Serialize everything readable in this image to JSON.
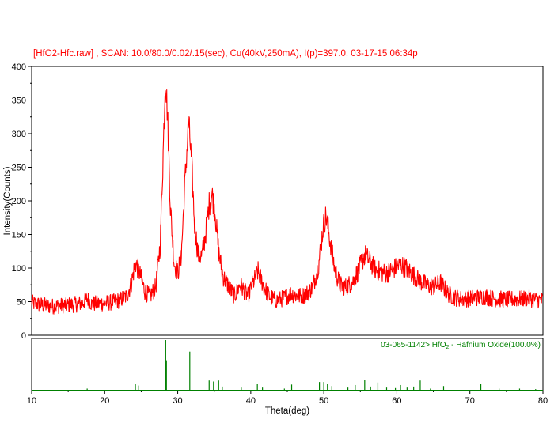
{
  "chart_data": {
    "type": "line",
    "title": "[HfO2-Hfc.raw] , SCAN: 10.0/80.0/0.02/.15(sec), Cu(40kV,250mA), I(p)=397.0, 03-17-15 06:34p",
    "title_color": "#ff0000",
    "xlabel": "Theta(deg)",
    "ylabel": "Intensity(Counts)",
    "xlim": [
      10,
      80
    ],
    "ylim": [
      0,
      400
    ],
    "xticks": [
      "10",
      "20",
      "30",
      "40",
      "50",
      "60",
      "70",
      "80"
    ],
    "yticks": [
      "0",
      "50",
      "100",
      "150",
      "200",
      "250",
      "300",
      "350",
      "400"
    ],
    "grid": false,
    "series": [
      {
        "color": "#ff0000",
        "points": [
          [
            10,
            48
          ],
          [
            11,
            46
          ],
          [
            12,
            44
          ],
          [
            13,
            43
          ],
          [
            14,
            44
          ],
          [
            15,
            45
          ],
          [
            16,
            46
          ],
          [
            17,
            48
          ],
          [
            17.6,
            55
          ],
          [
            18.2,
            47
          ],
          [
            19,
            47
          ],
          [
            20,
            48
          ],
          [
            21,
            49
          ],
          [
            22,
            52
          ],
          [
            23,
            58
          ],
          [
            23.6,
            75
          ],
          [
            24.2,
            108
          ],
          [
            24.8,
            92
          ],
          [
            25.5,
            65
          ],
          [
            26.2,
            58
          ],
          [
            27,
            72
          ],
          [
            27.6,
            135
          ],
          [
            28.0,
            270
          ],
          [
            28.3,
            385
          ],
          [
            28.6,
            330
          ],
          [
            29.0,
            190
          ],
          [
            29.5,
            108
          ],
          [
            30.0,
            92
          ],
          [
            30.5,
            120
          ],
          [
            31.0,
            230
          ],
          [
            31.5,
            318
          ],
          [
            31.9,
            255
          ],
          [
            32.3,
            165
          ],
          [
            32.8,
            120
          ],
          [
            33.3,
            118
          ],
          [
            33.8,
            150
          ],
          [
            34.3,
            195
          ],
          [
            34.7,
            210
          ],
          [
            35.1,
            185
          ],
          [
            35.6,
            125
          ],
          [
            36.2,
            88
          ],
          [
            37,
            72
          ],
          [
            37.8,
            58
          ],
          [
            38.5,
            75
          ],
          [
            39,
            68
          ],
          [
            39.6,
            58
          ],
          [
            40.2,
            75
          ],
          [
            41,
            95
          ],
          [
            41.8,
            72
          ],
          [
            42.5,
            58
          ],
          [
            43.5,
            52
          ],
          [
            44.5,
            55
          ],
          [
            45.5,
            62
          ],
          [
            46.5,
            58
          ],
          [
            47.5,
            60
          ],
          [
            48.5,
            72
          ],
          [
            49.3,
            105
          ],
          [
            49.9,
            160
          ],
          [
            50.3,
            178
          ],
          [
            50.8,
            145
          ],
          [
            51.5,
            98
          ],
          [
            52.2,
            75
          ],
          [
            53,
            72
          ],
          [
            54,
            80
          ],
          [
            54.8,
            98
          ],
          [
            55.6,
            120
          ],
          [
            56.3,
            110
          ],
          [
            57,
            98
          ],
          [
            57.8,
            95
          ],
          [
            58.5,
            92
          ],
          [
            59.5,
            98
          ],
          [
            60.5,
            105
          ],
          [
            61.3,
            100
          ],
          [
            62,
            92
          ],
          [
            63,
            82
          ],
          [
            64,
            75
          ],
          [
            65,
            72
          ],
          [
            66,
            78
          ],
          [
            67,
            62
          ],
          [
            68,
            56
          ],
          [
            69,
            54
          ],
          [
            70,
            55
          ],
          [
            71,
            56
          ],
          [
            72,
            58
          ],
          [
            73,
            55
          ],
          [
            74,
            54
          ],
          [
            75,
            53
          ],
          [
            76,
            54
          ],
          [
            77,
            54
          ],
          [
            78,
            55
          ],
          [
            79,
            53
          ],
          [
            80,
            52
          ]
        ]
      }
    ],
    "reference": {
      "label_prefix": "03-065-1142> HfO",
      "label_subscript": "2",
      "label_suffix": " - Hafnium Oxide(100.0%)",
      "color": "#008000",
      "lines": [
        [
          17.6,
          4
        ],
        [
          24.2,
          14
        ],
        [
          24.6,
          10
        ],
        [
          28.35,
          100
        ],
        [
          28.45,
          60
        ],
        [
          31.65,
          77
        ],
        [
          34.3,
          20
        ],
        [
          34.9,
          18
        ],
        [
          35.6,
          20
        ],
        [
          36.1,
          8
        ],
        [
          38.7,
          6
        ],
        [
          40.9,
          13
        ],
        [
          41.6,
          6
        ],
        [
          44.6,
          4
        ],
        [
          45.6,
          12
        ],
        [
          49.4,
          17
        ],
        [
          50.0,
          17
        ],
        [
          50.5,
          14
        ],
        [
          51.1,
          9
        ],
        [
          53.3,
          6
        ],
        [
          54.3,
          11
        ],
        [
          55.6,
          21
        ],
        [
          56.4,
          8
        ],
        [
          57.4,
          16
        ],
        [
          58.6,
          6
        ],
        [
          59.8,
          5
        ],
        [
          60.5,
          11
        ],
        [
          61.4,
          6
        ],
        [
          62.3,
          8
        ],
        [
          63.2,
          20
        ],
        [
          64.6,
          4
        ],
        [
          66.4,
          9
        ],
        [
          71.5,
          13
        ],
        [
          74.0,
          4
        ],
        [
          76.8,
          4
        ],
        [
          79.0,
          3
        ]
      ]
    }
  }
}
